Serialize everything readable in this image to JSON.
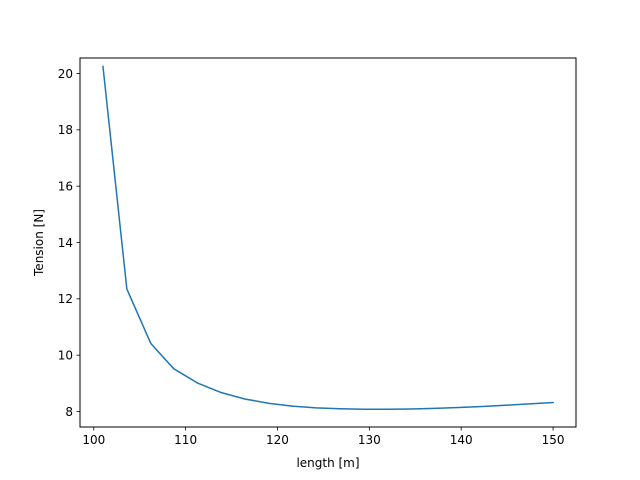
{
  "chart_data": {
    "type": "line",
    "title": "",
    "xlabel": "length [m]",
    "ylabel": "Tension [N]",
    "xlim": [
      98.5,
      152.5
    ],
    "ylim": [
      7.45,
      20.55
    ],
    "xticks": [
      100,
      110,
      120,
      130,
      140,
      150
    ],
    "xtick_labels": [
      "100",
      "110",
      "120",
      "130",
      "140",
      "150"
    ],
    "yticks": [
      8,
      10,
      12,
      14,
      16,
      18,
      20
    ],
    "ytick_labels": [
      "8",
      "10",
      "12",
      "14",
      "16",
      "18",
      "20"
    ],
    "grid": false,
    "legend": "none",
    "series": [
      {
        "color": "#1f77b4",
        "x": [
          101.0,
          103.6,
          106.2,
          108.7,
          111.3,
          113.9,
          116.5,
          119.1,
          121.6,
          124.2,
          126.8,
          129.4,
          131.9,
          134.5,
          137.1,
          139.7,
          142.3,
          144.8,
          147.4,
          150.0
        ],
        "y": [
          20.25,
          12.35,
          10.42,
          9.52,
          9.01,
          8.67,
          8.44,
          8.29,
          8.19,
          8.13,
          8.1,
          8.08,
          8.08,
          8.09,
          8.11,
          8.14,
          8.18,
          8.22,
          8.27,
          8.32
        ]
      }
    ]
  }
}
